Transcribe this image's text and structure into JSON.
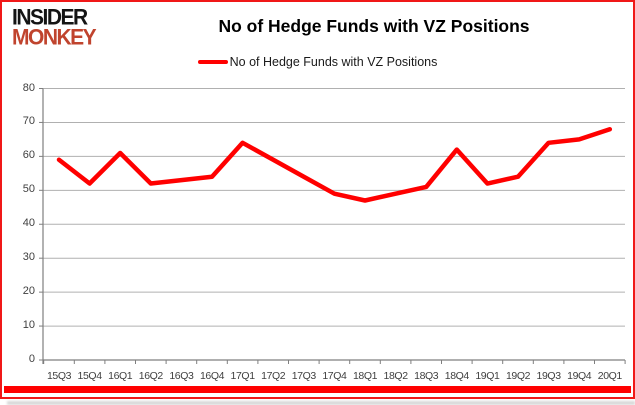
{
  "branding": {
    "line1": "INSIDER",
    "line2": "MONKEY",
    "line1_color": "#141414",
    "line2_color": "#c0442e"
  },
  "title": "No of Hedge Funds with VZ Positions",
  "legend": {
    "label": "No of Hedge Funds with VZ Positions",
    "color": "#ff0000"
  },
  "frame": {
    "border_color": "#f01818",
    "bottom_bar_color": "#ff0000"
  },
  "chart_data": {
    "type": "line",
    "title": "No of Hedge Funds with VZ Positions",
    "series_name": "No of Hedge Funds with VZ Positions",
    "categories": [
      "15Q3",
      "15Q4",
      "16Q1",
      "16Q2",
      "16Q3",
      "16Q4",
      "17Q1",
      "17Q2",
      "17Q3",
      "17Q4",
      "18Q1",
      "18Q2",
      "18Q3",
      "18Q4",
      "19Q1",
      "19Q2",
      "19Q3",
      "19Q4",
      "20Q1"
    ],
    "values": [
      59,
      52,
      61,
      52,
      53,
      54,
      64,
      59,
      54,
      49,
      47,
      49,
      51,
      62,
      52,
      54,
      64,
      65,
      68
    ],
    "xlabel": "",
    "ylabel": "",
    "ylim": [
      0,
      80
    ],
    "ytick_step": 10,
    "grid": true,
    "legend_position": "top-center",
    "line_color": "#ff0000",
    "gridline_color": "#b0b0b0",
    "axis_color": "#7f7f7f"
  }
}
